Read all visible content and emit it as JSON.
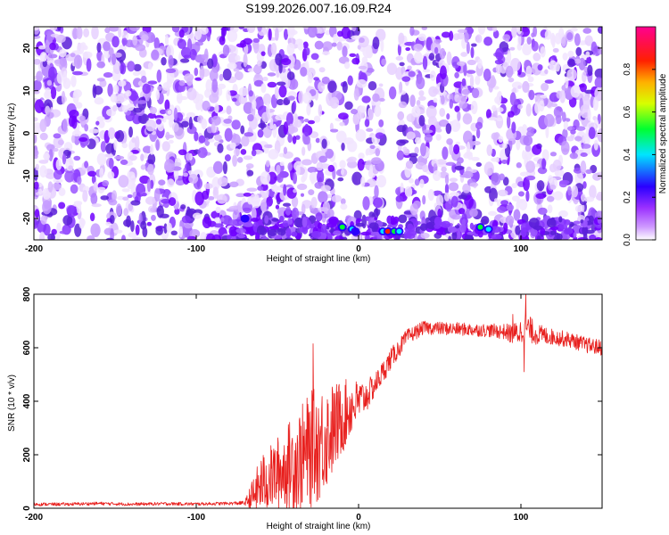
{
  "title": "S199.2026.007.16.09.R24",
  "chart_data": [
    {
      "type": "heatmap",
      "xlabel": "Height of straight line (km)",
      "ylabel": "Frequency (Hz)",
      "xlim": [
        -200,
        150
      ],
      "ylim": [
        -25,
        25
      ],
      "x_ticks": [
        "-200",
        "-100",
        "0",
        "100"
      ],
      "y_ticks": [
        "20",
        "10",
        "0",
        "-10",
        "-20"
      ],
      "colorbar": {
        "label": "Normalized spectral amplitude",
        "ticks": [
          "0.0",
          "0.2",
          "0.4",
          "0.6",
          "0.8"
        ],
        "range": [
          0,
          1
        ],
        "colors": [
          "#ffffff",
          "#9b30ff",
          "#0000ff",
          "#00ffff",
          "#00ff00",
          "#ffff00",
          "#ff8c00",
          "#ff0000",
          "#ff00aa"
        ]
      },
      "blank_bands_km": [
        [
          15,
          25
        ],
        [
          75,
          80
        ]
      ],
      "hotspots": [
        {
          "x": -10,
          "y": -22,
          "value": 0.45
        },
        {
          "x": -4,
          "y": -22.5,
          "value": 0.3
        },
        {
          "x": -2,
          "y": -23,
          "value": 0.25
        },
        {
          "x": 15,
          "y": -23,
          "value": 0.35
        },
        {
          "x": 18,
          "y": -23,
          "value": 0.95
        },
        {
          "x": 22,
          "y": -23,
          "value": 0.55
        },
        {
          "x": 25,
          "y": -23,
          "value": 0.4
        },
        {
          "x": 75,
          "y": -22,
          "value": 0.5
        },
        {
          "x": 80,
          "y": -22.5,
          "value": 0.3
        },
        {
          "x": -70,
          "y": -20,
          "value": 0.15
        }
      ]
    },
    {
      "type": "line",
      "xlabel": "Height of straight line (km)",
      "ylabel": "SNR (10 * v/v)",
      "xlim": [
        -200,
        150
      ],
      "ylim": [
        0,
        800
      ],
      "x_ticks": [
        "-200",
        "-100",
        "0",
        "100"
      ],
      "y_ticks": [
        "0",
        "200",
        "400",
        "600",
        "800"
      ],
      "color": "#e8201e",
      "series": [
        {
          "x": [
            -200,
            -180,
            -160,
            -140,
            -120,
            -100,
            -80,
            -70,
            -65,
            -60,
            -55,
            -50,
            -45,
            -40,
            -35,
            -30,
            -25,
            -20,
            -15,
            -10,
            -5,
            0,
            5,
            10,
            20,
            30,
            40,
            60,
            80,
            90,
            95,
            100,
            102,
            110,
            120,
            130,
            140,
            150
          ],
          "y": [
            15,
            15,
            18,
            15,
            17,
            16,
            18,
            20,
            45,
            90,
            110,
            130,
            150,
            170,
            190,
            215,
            240,
            270,
            300,
            340,
            375,
            400,
            420,
            460,
            560,
            640,
            675,
            670,
            665,
            660,
            650,
            660,
            680,
            650,
            640,
            630,
            610,
            600
          ],
          "noise": [
            6,
            6,
            6,
            6,
            6,
            6,
            6,
            8,
            70,
            110,
            120,
            140,
            150,
            190,
            200,
            220,
            220,
            200,
            170,
            140,
            110,
            80,
            60,
            45,
            40,
            30,
            25,
            25,
            25,
            30,
            40,
            50,
            60,
            40,
            30,
            30,
            30,
            30
          ]
        }
      ],
      "peaks": [
        {
          "x": -28,
          "y": 615
        },
        {
          "x": 95,
          "y": 725
        },
        {
          "x": 103,
          "y": 800
        },
        {
          "x": 102,
          "y": 510
        }
      ]
    }
  ]
}
